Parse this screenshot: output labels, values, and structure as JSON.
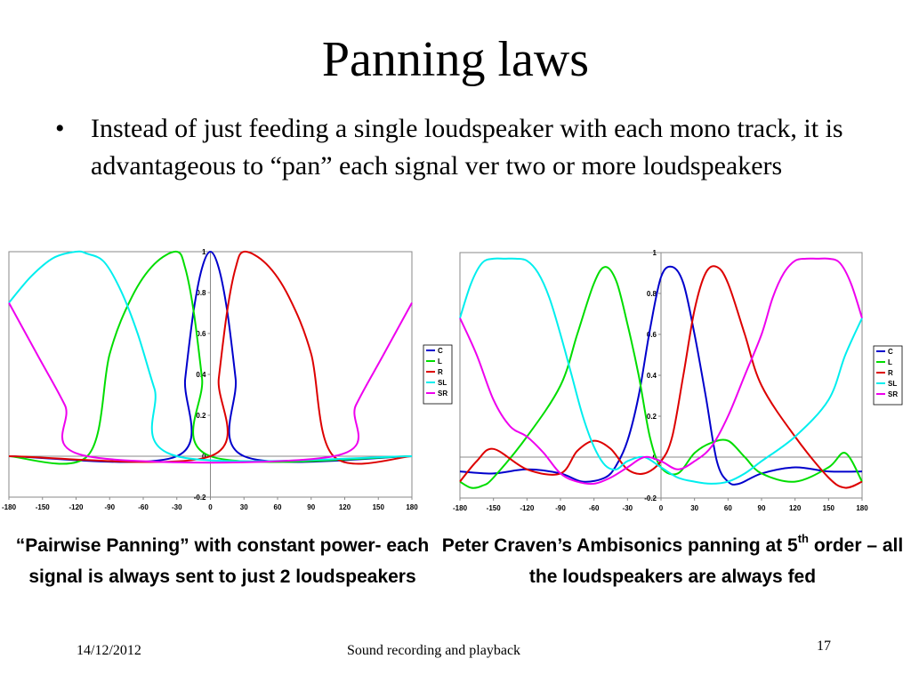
{
  "slide": {
    "title": "Panning laws",
    "bullet": "Instead of just feeding a single loudspeaker with each mono track, it is advantageous to “pan” each signal ver two or more loudspeakers",
    "bullet_symbol": "•"
  },
  "captions": {
    "left": "“Pairwise Panning” with constant power- each signal is always sent to just 2 loudspeakers",
    "right_prefix": "Peter Craven’s Ambisonics panning at 5",
    "right_sup": "th",
    "right_suffix": " order – all the loudspeakers are always fed"
  },
  "footer": {
    "date": "14/12/2012",
    "center": "Sound recording and playback",
    "page": "17"
  },
  "colors": {
    "C": "#0000cc",
    "L": "#00dd00",
    "R": "#dd0000",
    "SL": "#00eeee",
    "SR": "#ee00ee"
  },
  "chart_data": [
    {
      "type": "line",
      "title": "",
      "xlabel": "",
      "ylabel": "",
      "xlim": [
        -180,
        180
      ],
      "ylim": [
        -0.2,
        1
      ],
      "x_ticks": [
        "-180",
        "-150",
        "-120",
        "-90",
        "-60",
        "-30",
        "0",
        "30",
        "60",
        "90",
        "120",
        "150",
        "180"
      ],
      "y_ticks": [
        "-0.2",
        "0",
        "0.2",
        "0.4",
        "0.6",
        "0.8",
        "1"
      ],
      "legend": [
        "C",
        "L",
        "R",
        "SL",
        "SR"
      ],
      "legend_position": "right",
      "series": [
        {
          "name": "C",
          "x": [
            -180,
            -30,
            -22.5,
            -15,
            -7.5,
            0,
            7.5,
            15,
            22.5,
            30,
            180
          ],
          "y": [
            0,
            0,
            0.38,
            0.71,
            0.92,
            1,
            0.92,
            0.71,
            0.38,
            0,
            0
          ]
        },
        {
          "name": "L",
          "x": [
            -180,
            -110,
            -90,
            -70,
            -50,
            -30,
            -22.5,
            -15,
            -7.5,
            0,
            180
          ],
          "y": [
            0,
            0,
            0.5,
            0.78,
            0.94,
            1,
            0.92,
            0.71,
            0.38,
            0,
            0
          ]
        },
        {
          "name": "R",
          "x": [
            -180,
            0,
            7.5,
            15,
            22.5,
            30,
            50,
            70,
            90,
            110,
            180
          ],
          "y": [
            0,
            0,
            0.38,
            0.71,
            0.92,
            1,
            0.94,
            0.78,
            0.5,
            0,
            0
          ]
        },
        {
          "name": "SL",
          "x": [
            -180,
            -160,
            -140,
            -120,
            -110,
            -95,
            -80,
            -65,
            -50,
            -30,
            180
          ],
          "y": [
            0.75,
            0.88,
            0.97,
            1,
            0.99,
            0.95,
            0.81,
            0.6,
            0.33,
            0,
            0
          ]
        },
        {
          "name": "SR",
          "x": [
            -180,
            -155,
            -130,
            -110,
            110,
            130,
            155,
            180
          ],
          "y": [
            0.75,
            0.5,
            0.25,
            0,
            0,
            0.25,
            0.5,
            0.75
          ]
        }
      ]
    },
    {
      "type": "line",
      "title": "",
      "xlabel": "",
      "ylabel": "",
      "xlim": [
        -180,
        180
      ],
      "ylim": [
        -0.2,
        1
      ],
      "x_ticks": [
        "-180",
        "-150",
        "-120",
        "-90",
        "-60",
        "-30",
        "0",
        "30",
        "60",
        "90",
        "120",
        "150",
        "180"
      ],
      "y_ticks": [
        "-0.2",
        "0",
        "0.2",
        "0.4",
        "0.6",
        "0.8",
        "1"
      ],
      "legend": [
        "C",
        "L",
        "R",
        "SL",
        "SR"
      ],
      "legend_position": "right",
      "series": [
        {
          "name": "C",
          "x": [
            -180,
            -150,
            -120,
            -90,
            -70,
            -50,
            -40,
            -30,
            -20,
            -10,
            0,
            10,
            20,
            30,
            40,
            50,
            60,
            70,
            90,
            120,
            150,
            180
          ],
          "y": [
            -0.07,
            -0.08,
            -0.06,
            -0.08,
            -0.12,
            -0.1,
            -0.04,
            0.08,
            0.3,
            0.62,
            0.88,
            0.93,
            0.85,
            0.6,
            0.3,
            -0.02,
            -0.12,
            -0.13,
            -0.08,
            -0.05,
            -0.07,
            -0.07
          ]
        },
        {
          "name": "L",
          "x": [
            -180,
            -170,
            -160,
            -150,
            -120,
            -90,
            -75,
            -60,
            -50,
            -40,
            -30,
            -20,
            -10,
            0,
            15,
            30,
            45,
            60,
            75,
            90,
            120,
            150,
            165,
            180
          ],
          "y": [
            -0.12,
            -0.15,
            -0.14,
            -0.1,
            0.1,
            0.35,
            0.6,
            0.85,
            0.93,
            0.86,
            0.65,
            0.4,
            0.1,
            -0.05,
            -0.08,
            0.02,
            0.07,
            0.08,
            0.0,
            -0.08,
            -0.12,
            -0.05,
            0.02,
            -0.12
          ]
        },
        {
          "name": "R",
          "x": [
            -180,
            -165,
            -150,
            -120,
            -90,
            -75,
            -60,
            -45,
            -30,
            -15,
            0,
            10,
            20,
            30,
            40,
            50,
            60,
            75,
            90,
            120,
            150,
            165,
            180
          ],
          "y": [
            -0.12,
            -0.02,
            0.04,
            -0.06,
            -0.08,
            0.03,
            0.08,
            0.04,
            -0.06,
            -0.08,
            -0.02,
            0.1,
            0.4,
            0.72,
            0.9,
            0.93,
            0.85,
            0.6,
            0.35,
            0.1,
            -0.1,
            -0.15,
            -0.12
          ]
        },
        {
          "name": "SL",
          "x": [
            -180,
            -170,
            -160,
            -150,
            -140,
            -130,
            -120,
            -110,
            -100,
            -90,
            -80,
            -70,
            -60,
            -50,
            -40,
            -30,
            -15,
            0,
            15,
            30,
            45,
            60,
            75,
            90,
            120,
            150,
            165,
            180
          ],
          "y": [
            0.68,
            0.85,
            0.95,
            0.97,
            0.97,
            0.97,
            0.96,
            0.9,
            0.78,
            0.6,
            0.4,
            0.2,
            0.05,
            -0.04,
            -0.06,
            -0.02,
            0.0,
            -0.05,
            -0.1,
            -0.12,
            -0.13,
            -0.12,
            -0.08,
            -0.02,
            0.1,
            0.28,
            0.5,
            0.68
          ]
        },
        {
          "name": "SR",
          "x": [
            -180,
            -165,
            -150,
            -135,
            -120,
            -105,
            -90,
            -75,
            -60,
            -45,
            -30,
            -15,
            0,
            15,
            30,
            45,
            60,
            75,
            90,
            100,
            110,
            120,
            130,
            140,
            150,
            160,
            170,
            180
          ],
          "y": [
            0.68,
            0.5,
            0.28,
            0.15,
            0.1,
            0.02,
            -0.08,
            -0.12,
            -0.13,
            -0.1,
            -0.05,
            0.0,
            -0.02,
            -0.06,
            -0.02,
            0.05,
            0.2,
            0.4,
            0.6,
            0.78,
            0.9,
            0.96,
            0.97,
            0.97,
            0.97,
            0.95,
            0.85,
            0.68
          ]
        }
      ]
    }
  ]
}
